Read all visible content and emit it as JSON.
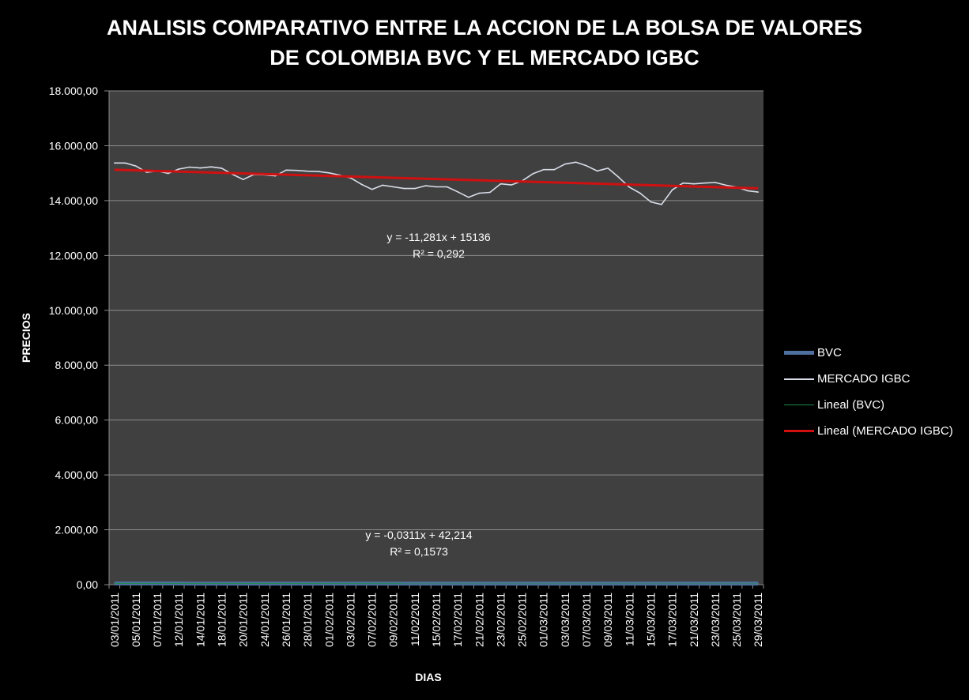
{
  "chart_data": {
    "type": "line",
    "title_lines": [
      "ANALISIS COMPARATIVO ENTRE LA ACCION DE LA BOLSA DE VALORES",
      "DE COLOMBIA BVC Y EL MERCADO IGBC"
    ],
    "xlabel": "DIAS",
    "ylabel": "PRECIOS",
    "ylim": [
      0,
      18000
    ],
    "yticks": [
      "0,00",
      "2.000,00",
      "4.000,00",
      "6.000,00",
      "8.000,00",
      "10.000,00",
      "12.000,00",
      "14.000,00",
      "16.000,00",
      "18.000,00"
    ],
    "x_tick_labels": [
      "03/01/2011",
      "05/01/2011",
      "07/01/2011",
      "12/01/2011",
      "14/01/2011",
      "18/01/2011",
      "20/01/2011",
      "24/01/2011",
      "26/01/2011",
      "28/01/2011",
      "01/02/2011",
      "03/02/2011",
      "07/02/2011",
      "09/02/2011",
      "11/02/2011",
      "15/02/2011",
      "17/02/2011",
      "21/02/2011",
      "23/02/2011",
      "25/02/2011",
      "01/03/2011",
      "03/03/2011",
      "07/03/2011",
      "09/03/2011",
      "11/03/2011",
      "15/03/2011",
      "17/03/2011",
      "21/03/2011",
      "23/03/2011",
      "25/03/2011",
      "29/03/2011"
    ],
    "x_count": 61,
    "grid": true,
    "legend_position": "right",
    "series": [
      {
        "name": "BVC",
        "color": "#4f6f9f",
        "values": [
          42,
          42,
          42,
          42,
          42,
          42,
          42,
          41,
          41,
          41,
          41,
          41,
          41,
          41,
          41,
          41,
          41,
          41,
          41,
          41,
          41,
          41,
          41,
          41,
          41,
          41,
          41,
          41,
          41,
          41,
          41,
          41,
          41,
          41,
          41,
          41,
          41,
          41,
          41,
          41,
          41,
          41,
          41,
          41,
          41,
          41,
          41,
          41,
          41,
          41,
          41,
          41,
          41,
          41,
          41,
          41,
          40,
          40,
          40,
          40,
          40
        ]
      },
      {
        "name": "MERCADO IGBC",
        "color": "#d9dde8",
        "values": [
          15370,
          15370,
          15260,
          15030,
          15080,
          14990,
          15150,
          15220,
          15190,
          15230,
          15180,
          14960,
          14770,
          14950,
          14940,
          14900,
          15110,
          15100,
          15070,
          15060,
          15010,
          14930,
          14830,
          14600,
          14410,
          14560,
          14500,
          14440,
          14440,
          14540,
          14500,
          14500,
          14320,
          14120,
          14270,
          14300,
          14610,
          14570,
          14720,
          14980,
          15130,
          15130,
          15330,
          15400,
          15270,
          15080,
          15180,
          14850,
          14490,
          14270,
          13950,
          13860,
          14390,
          14640,
          14610,
          14640,
          14660,
          14560,
          14490,
          14360,
          14310
        ]
      }
    ],
    "trendlines": [
      {
        "name": "Lineal (BVC)",
        "color": "#1e8a4e",
        "equation": "y = -0,0311x + 42,214",
        "r2": "R² = 0,1573",
        "slope": -0.0311,
        "intercept": 42.214
      },
      {
        "name": "Lineal (MERCADO IGBC)",
        "color": "#d01010",
        "equation": "y = -11,281x + 15136",
        "r2": "R² = 0,292",
        "slope": -11.281,
        "intercept": 15136
      }
    ]
  }
}
